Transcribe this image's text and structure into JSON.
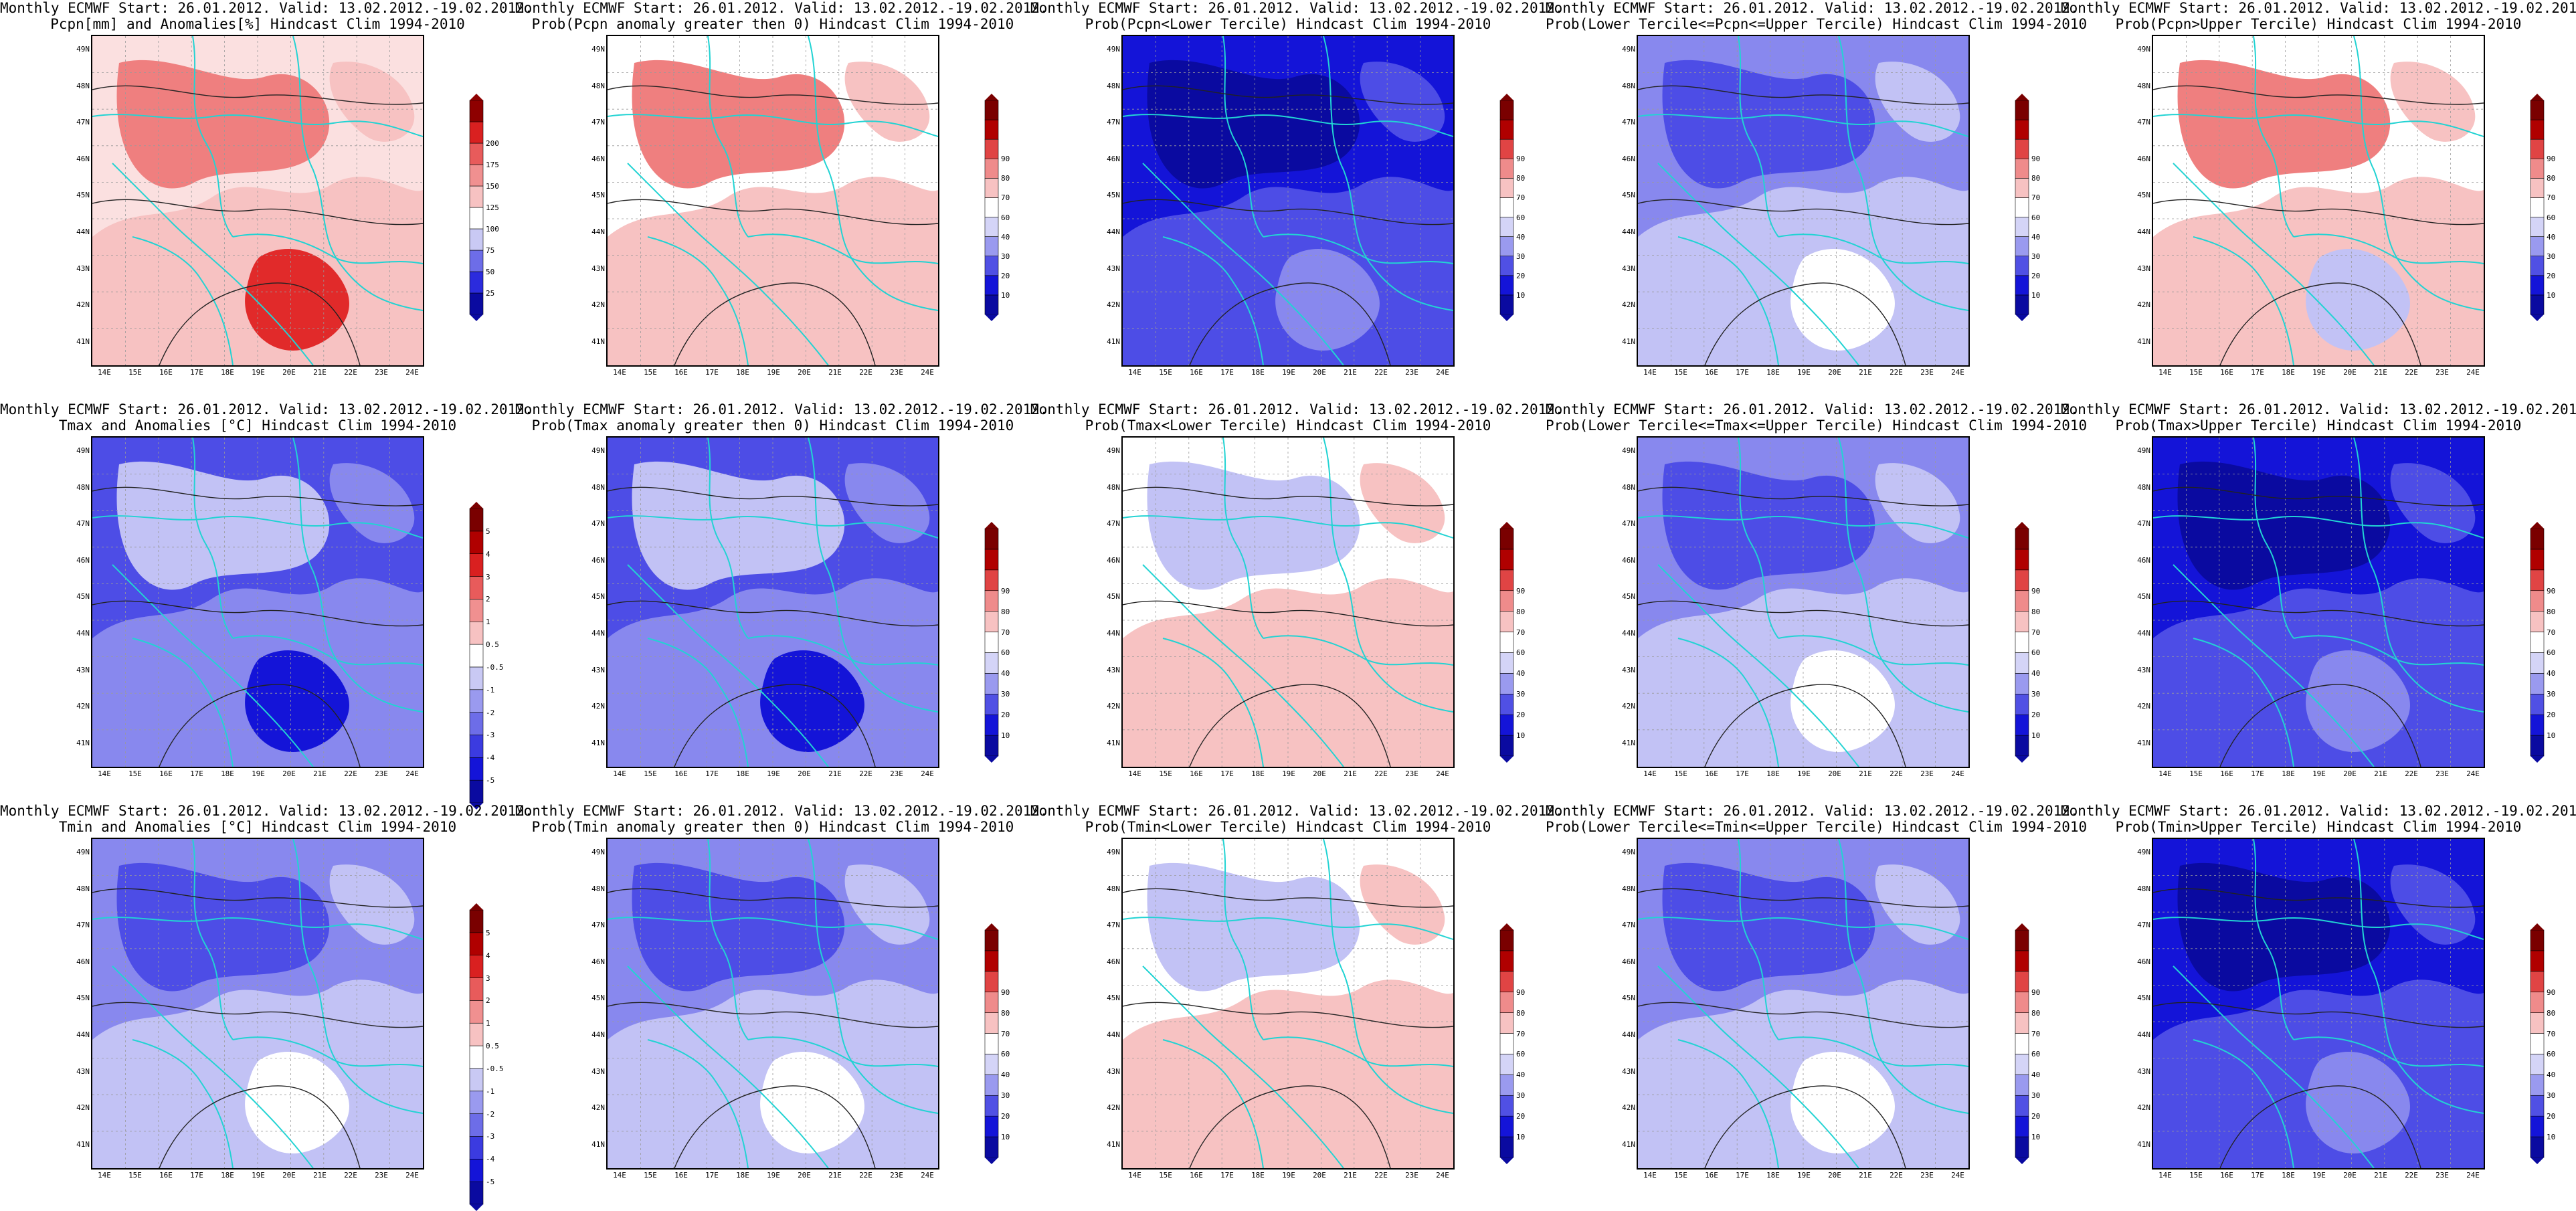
{
  "header": "Monthly ECMWF Start: 26.01.2012. Valid: 13.02.2012.-19.02.2012.",
  "lat_labels": [
    "49N",
    "48N",
    "47N",
    "46N",
    "45N",
    "44N",
    "43N",
    "42N",
    "41N"
  ],
  "lon_labels": [
    "14E",
    "15E",
    "16E",
    "17E",
    "18E",
    "19E",
    "20E",
    "21E",
    "22E",
    "23E",
    "24E"
  ],
  "scales": {
    "pcpn_anom": [
      "25",
      "50",
      "75",
      "100",
      "125",
      "150",
      "175",
      "200"
    ],
    "t_anom": [
      "-5",
      "-4",
      "-3",
      "-2",
      "-1",
      "-0.5",
      "0.5",
      "1",
      "2",
      "3",
      "4",
      "5"
    ],
    "prob": [
      "10",
      "20",
      "30",
      "40",
      "60",
      "70",
      "80",
      "90"
    ]
  },
  "colors": {
    "coast": "#22d3d3",
    "deep_blue": "#1414d8",
    "blue": "#4d4de6",
    "mid_blue": "#8888ee",
    "light_blue": "#c2c2f5",
    "light_red": "#f7c2c2",
    "red": "#ef7f7f",
    "deep_red": "#e12a2a"
  },
  "panels": [
    {
      "subtitle": "Pcpn[mm] and Anomalies[%] Hindcast Clim 1994-2010",
      "scale": "pcpn_anom",
      "scheme": "pcpn"
    },
    {
      "subtitle": "Prob(Pcpn anomaly greater then 0) Hindcast Clim 1994-2010",
      "scale": "prob",
      "scheme": "pcpn_prob"
    },
    {
      "subtitle": "Prob(Pcpn<Lower Tercile) Hindcast Clim 1994-2010",
      "scale": "prob",
      "scheme": "deep"
    },
    {
      "subtitle": "Prob(Lower Tercile<=Pcpn<=Upper Tercile) Hindcast Clim 1994-2010",
      "scale": "prob",
      "scheme": "mid"
    },
    {
      "subtitle": "Prob(Pcpn>Upper Tercile) Hindcast Clim 1994-2010",
      "scale": "prob",
      "scheme": "upper_pcpn"
    },
    {
      "subtitle": "Tmax and Anomalies [°C] Hindcast Clim 1994-2010",
      "scale": "t_anom",
      "scheme": "cold"
    },
    {
      "subtitle": "Prob(Tmax anomaly greater then 0) Hindcast Clim 1994-2010",
      "scale": "prob",
      "scheme": "cold"
    },
    {
      "subtitle": "Prob(Tmax<Lower Tercile) Hindcast Clim 1994-2010",
      "scale": "prob",
      "scheme": "warm_low"
    },
    {
      "subtitle": "Prob(Lower Tercile<=Tmax<=Upper Tercile) Hindcast Clim 1994-2010",
      "scale": "prob",
      "scheme": "mid"
    },
    {
      "subtitle": "Prob(Tmax>Upper Tercile) Hindcast Clim 1994-2010",
      "scale": "prob",
      "scheme": "deep"
    },
    {
      "subtitle": "Tmin and Anomalies [°C] Hindcast Clim 1994-2010",
      "scale": "t_anom",
      "scheme": "cold_light"
    },
    {
      "subtitle": "Prob(Tmin anomaly greater then 0) Hindcast Clim 1994-2010",
      "scale": "prob",
      "scheme": "cold_light"
    },
    {
      "subtitle": "Prob(Tmin<Lower Tercile) Hindcast Clim 1994-2010",
      "scale": "prob",
      "scheme": "warm_low"
    },
    {
      "subtitle": "Prob(Lower Tercile<=Tmin<=Upper Tercile) Hindcast Clim 1994-2010",
      "scale": "prob",
      "scheme": "mid"
    },
    {
      "subtitle": "Prob(Tmin>Upper Tercile) Hindcast Clim 1994-2010",
      "scale": "prob",
      "scheme": "deep"
    }
  ]
}
